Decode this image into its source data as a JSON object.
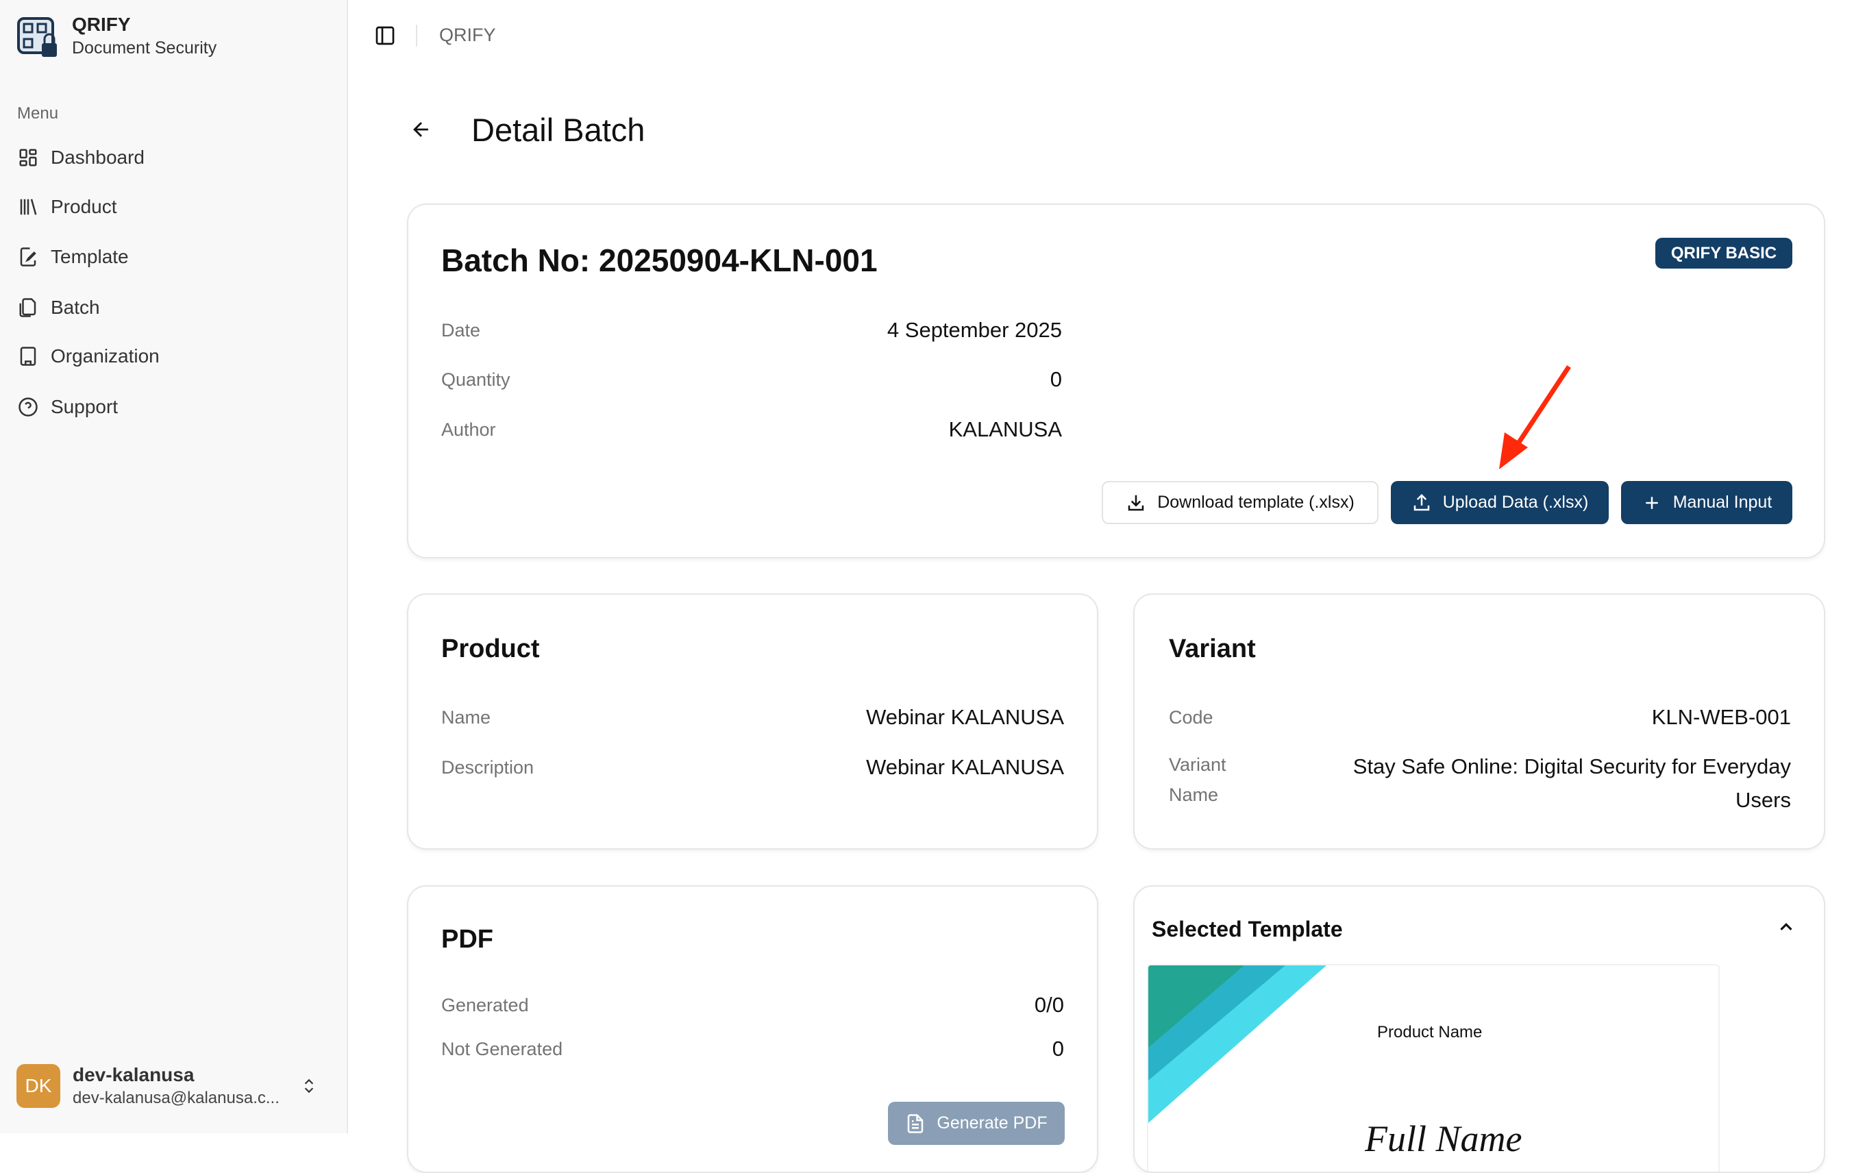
{
  "sidebar": {
    "brand": {
      "title": "QRIFY",
      "subtitle": "Document Security"
    },
    "menu_label": "Menu",
    "items": [
      {
        "label": "Dashboard",
        "icon": "dashboard-icon"
      },
      {
        "label": "Product",
        "icon": "library-icon"
      },
      {
        "label": "Template",
        "icon": "file-edit-icon"
      },
      {
        "label": "Batch",
        "icon": "files-icon"
      },
      {
        "label": "Organization",
        "icon": "building-icon"
      },
      {
        "label": "Support",
        "icon": "help-circle-icon"
      }
    ],
    "user": {
      "initials": "DK",
      "name": "dev-kalanusa",
      "email": "dev-kalanusa@kalanusa.c...",
      "avatar_color": "#d9953a"
    }
  },
  "header": {
    "breadcrumb": "QRIFY"
  },
  "page": {
    "title": "Detail Batch"
  },
  "batch": {
    "title": "Batch No: 20250904-KLN-001",
    "badge": "QRIFY BASIC",
    "rows": [
      {
        "label": "Date",
        "value": "4 September 2025"
      },
      {
        "label": "Quantity",
        "value": "0"
      },
      {
        "label": "Author",
        "value": "KALANUSA"
      }
    ],
    "buttons": {
      "download": "Download template (.xlsx)",
      "upload": "Upload Data (.xlsx)",
      "manual": "Manual Input"
    }
  },
  "product": {
    "title": "Product",
    "rows": [
      {
        "label": "Name",
        "value": "Webinar KALANUSA"
      },
      {
        "label": "Description",
        "value": "Webinar KALANUSA"
      }
    ]
  },
  "variant": {
    "title": "Variant",
    "rows": [
      {
        "label": "Code",
        "value": "KLN-WEB-001"
      },
      {
        "label": "Variant Name",
        "value": "Stay Safe Online: Digital Security for Everyday Users"
      }
    ]
  },
  "pdf": {
    "title": "PDF",
    "rows": [
      {
        "label": "Generated",
        "value": "0/0"
      },
      {
        "label": "Not Generated",
        "value": "0"
      }
    ],
    "generate_label": "Generate PDF"
  },
  "template": {
    "title": "Selected Template",
    "preview": {
      "product_name": "Product Name",
      "full_name": "Full Name"
    }
  },
  "colors": {
    "primary": "#133e66",
    "disabled": "#8a9fb5",
    "annotation_arrow": "#ff2a0a"
  }
}
